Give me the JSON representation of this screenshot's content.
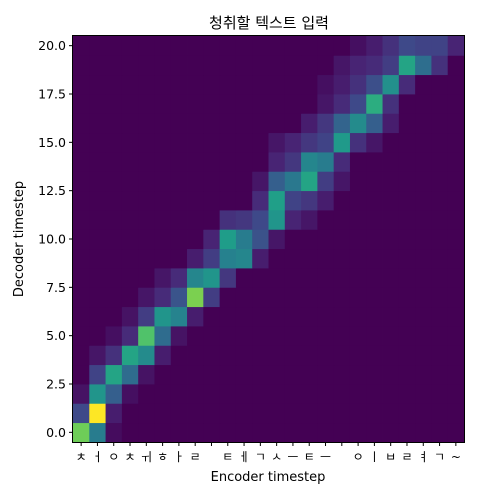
{
  "chart_data": {
    "type": "heatmap",
    "title": "청취할 텍스트 입력",
    "xlabel": "Encoder timestep",
    "ylabel": "Decoder timestep",
    "x_tick_labels": [
      "ㅊ",
      "ㅓ",
      "ㅇ",
      "ㅊ",
      "ㅟ",
      "ㅎ",
      "ㅏ",
      "ㄹ",
      " ",
      "ㅌ",
      "ㅔ",
      "ㄱ",
      "ㅅ",
      "ㅡ",
      "ㅌ",
      "ㅡ",
      " ",
      "ㅇ",
      "ㅣ",
      "ㅂ",
      "ㄹ",
      "ㅕ",
      "ㄱ",
      "~"
    ],
    "y_ticks": [
      0.0,
      2.5,
      5.0,
      7.5,
      10.0,
      12.5,
      15.0,
      17.5,
      20.0
    ],
    "y_tick_labels": [
      "0.0",
      "2.5",
      "5.0",
      "7.5",
      "10.0",
      "12.5",
      "15.0",
      "17.5",
      "20.0"
    ],
    "ylim": [
      -0.5,
      20.5
    ],
    "n_encoder_steps": 24,
    "n_decoder_steps": 21,
    "colormap": "viridis",
    "value_range": [
      0,
      1
    ],
    "peak_path": [
      {
        "row": 0,
        "cells": [
          [
            0,
            0.78
          ],
          [
            1,
            0.42
          ],
          [
            2,
            0.03
          ]
        ]
      },
      {
        "row": 1,
        "cells": [
          [
            0,
            0.22
          ],
          [
            1,
            1.0
          ],
          [
            2,
            0.08
          ]
        ]
      },
      {
        "row": 2,
        "cells": [
          [
            0,
            0.05
          ],
          [
            1,
            0.52
          ],
          [
            2,
            0.3
          ],
          [
            3,
            0.04
          ]
        ]
      },
      {
        "row": 3,
        "cells": [
          [
            1,
            0.2
          ],
          [
            2,
            0.58
          ],
          [
            3,
            0.35
          ],
          [
            4,
            0.05
          ]
        ]
      },
      {
        "row": 4,
        "cells": [
          [
            1,
            0.06
          ],
          [
            2,
            0.14
          ],
          [
            3,
            0.58
          ],
          [
            4,
            0.48
          ],
          [
            5,
            0.08
          ]
        ]
      },
      {
        "row": 5,
        "cells": [
          [
            2,
            0.04
          ],
          [
            3,
            0.12
          ],
          [
            4,
            0.72
          ],
          [
            5,
            0.35
          ],
          [
            6,
            0.05
          ]
        ]
      },
      {
        "row": 6,
        "cells": [
          [
            3,
            0.05
          ],
          [
            4,
            0.18
          ],
          [
            5,
            0.52
          ],
          [
            6,
            0.45
          ],
          [
            7,
            0.08
          ]
        ]
      },
      {
        "row": 7,
        "cells": [
          [
            4,
            0.06
          ],
          [
            5,
            0.12
          ],
          [
            6,
            0.26
          ],
          [
            7,
            0.8
          ],
          [
            8,
            0.18
          ]
        ]
      },
      {
        "row": 8,
        "cells": [
          [
            5,
            0.06
          ],
          [
            6,
            0.12
          ],
          [
            7,
            0.46
          ],
          [
            8,
            0.52
          ],
          [
            9,
            0.16
          ]
        ]
      },
      {
        "row": 9,
        "cells": [
          [
            7,
            0.08
          ],
          [
            8,
            0.18
          ],
          [
            9,
            0.44
          ],
          [
            10,
            0.46
          ],
          [
            11,
            0.08
          ]
        ]
      },
      {
        "row": 10,
        "cells": [
          [
            8,
            0.1
          ],
          [
            9,
            0.55
          ],
          [
            10,
            0.42
          ],
          [
            11,
            0.25
          ],
          [
            12,
            0.06
          ]
        ]
      },
      {
        "row": 11,
        "cells": [
          [
            9,
            0.14
          ],
          [
            10,
            0.16
          ],
          [
            11,
            0.22
          ],
          [
            12,
            0.52
          ],
          [
            13,
            0.1
          ],
          [
            14,
            0.06
          ]
        ]
      },
      {
        "row": 12,
        "cells": [
          [
            11,
            0.12
          ],
          [
            12,
            0.56
          ],
          [
            13,
            0.2
          ],
          [
            14,
            0.16
          ],
          [
            15,
            0.08
          ]
        ]
      },
      {
        "row": 13,
        "cells": [
          [
            11,
            0.06
          ],
          [
            12,
            0.3
          ],
          [
            13,
            0.4
          ],
          [
            14,
            0.58
          ],
          [
            15,
            0.18
          ],
          [
            16,
            0.06
          ]
        ]
      },
      {
        "row": 14,
        "cells": [
          [
            12,
            0.1
          ],
          [
            13,
            0.16
          ],
          [
            14,
            0.46
          ],
          [
            15,
            0.42
          ],
          [
            16,
            0.12
          ]
        ]
      },
      {
        "row": 15,
        "cells": [
          [
            12,
            0.06
          ],
          [
            13,
            0.1
          ],
          [
            14,
            0.16
          ],
          [
            15,
            0.2
          ],
          [
            16,
            0.54
          ],
          [
            17,
            0.14
          ],
          [
            18,
            0.06
          ]
        ]
      },
      {
        "row": 16,
        "cells": [
          [
            14,
            0.08
          ],
          [
            15,
            0.16
          ],
          [
            16,
            0.32
          ],
          [
            17,
            0.48
          ],
          [
            18,
            0.3
          ],
          [
            19,
            0.08
          ]
        ]
      },
      {
        "row": 17,
        "cells": [
          [
            15,
            0.06
          ],
          [
            16,
            0.12
          ],
          [
            17,
            0.22
          ],
          [
            18,
            0.62
          ],
          [
            19,
            0.14
          ]
        ]
      },
      {
        "row": 18,
        "cells": [
          [
            15,
            0.04
          ],
          [
            16,
            0.08
          ],
          [
            17,
            0.14
          ],
          [
            18,
            0.24
          ],
          [
            19,
            0.5
          ],
          [
            20,
            0.12
          ]
        ]
      },
      {
        "row": 19,
        "cells": [
          [
            16,
            0.06
          ],
          [
            17,
            0.1
          ],
          [
            18,
            0.12
          ],
          [
            19,
            0.18
          ],
          [
            20,
            0.58
          ],
          [
            21,
            0.36
          ],
          [
            22,
            0.14
          ]
        ]
      },
      {
        "row": 20,
        "cells": [
          [
            17,
            0.04
          ],
          [
            18,
            0.08
          ],
          [
            19,
            0.14
          ],
          [
            20,
            0.22
          ],
          [
            21,
            0.2
          ],
          [
            22,
            0.2
          ],
          [
            23,
            0.1
          ]
        ]
      }
    ]
  }
}
